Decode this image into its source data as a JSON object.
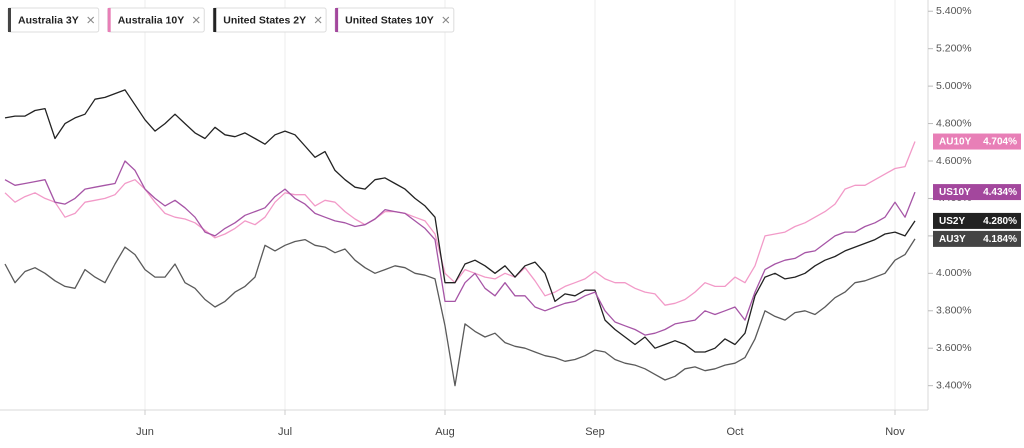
{
  "chart_data": {
    "type": "line",
    "categories": [
      null,
      null,
      null,
      null,
      null,
      null,
      null,
      null,
      null,
      null,
      null,
      null,
      null,
      null,
      "Jun",
      null,
      null,
      null,
      null,
      null,
      null,
      null,
      null,
      null,
      null,
      null,
      null,
      null,
      "Jul",
      null,
      null,
      null,
      null,
      null,
      null,
      null,
      null,
      null,
      null,
      null,
      null,
      null,
      null,
      null,
      "Aug",
      null,
      null,
      null,
      null,
      null,
      null,
      null,
      null,
      null,
      null,
      null,
      null,
      null,
      null,
      "Sep",
      null,
      null,
      null,
      null,
      null,
      null,
      null,
      null,
      null,
      null,
      null,
      null,
      null,
      "Oct",
      null,
      null,
      null,
      null,
      null,
      null,
      null,
      null,
      null,
      null,
      null,
      null,
      null,
      null,
      null,
      "Nov",
      null,
      null
    ],
    "series": [
      {
        "name": "Australia 3Y",
        "short_name": "AU3Y",
        "last_label": "4.184%",
        "color": "#5a5a5a",
        "badge_color": "#444444",
        "values": [
          4.05,
          3.95,
          4.01,
          4.03,
          4.0,
          3.96,
          3.93,
          3.92,
          4.02,
          3.98,
          3.95,
          4.05,
          4.14,
          4.1,
          4.02,
          3.98,
          3.98,
          4.05,
          3.95,
          3.92,
          3.86,
          3.82,
          3.85,
          3.9,
          3.93,
          3.98,
          4.15,
          4.12,
          4.15,
          4.17,
          4.18,
          4.15,
          4.14,
          4.11,
          4.13,
          4.07,
          4.03,
          4.0,
          4.02,
          4.04,
          4.03,
          4.0,
          3.99,
          3.97,
          3.72,
          3.4,
          3.73,
          3.69,
          3.66,
          3.68,
          3.63,
          3.61,
          3.6,
          3.58,
          3.56,
          3.55,
          3.53,
          3.54,
          3.56,
          3.59,
          3.58,
          3.54,
          3.52,
          3.51,
          3.49,
          3.46,
          3.43,
          3.45,
          3.49,
          3.5,
          3.48,
          3.49,
          3.51,
          3.52,
          3.55,
          3.65,
          3.8,
          3.77,
          3.75,
          3.79,
          3.8,
          3.78,
          3.82,
          3.87,
          3.9,
          3.95,
          3.96,
          3.98,
          4.0,
          4.07,
          4.1,
          4.184
        ]
      },
      {
        "name": "Australia 10Y",
        "short_name": "AU10Y",
        "last_label": "4.704%",
        "color": "#f29ac8",
        "badge_color": "#e87fb7",
        "values": [
          4.43,
          4.38,
          4.41,
          4.43,
          4.4,
          4.38,
          4.3,
          4.32,
          4.38,
          4.39,
          4.4,
          4.42,
          4.48,
          4.5,
          4.45,
          4.38,
          4.32,
          4.3,
          4.29,
          4.27,
          4.23,
          4.19,
          4.21,
          4.24,
          4.28,
          4.26,
          4.3,
          4.38,
          4.43,
          4.42,
          4.42,
          4.36,
          4.39,
          4.38,
          4.33,
          4.29,
          4.26,
          4.29,
          4.33,
          4.33,
          4.32,
          4.3,
          4.28,
          4.21,
          4.0,
          3.95,
          4.02,
          4.0,
          3.98,
          3.97,
          4.0,
          3.98,
          4.03,
          3.96,
          3.88,
          3.9,
          3.93,
          3.95,
          3.97,
          4.01,
          3.97,
          3.95,
          3.95,
          3.92,
          3.9,
          3.89,
          3.83,
          3.84,
          3.86,
          3.9,
          3.95,
          3.93,
          3.93,
          3.98,
          3.95,
          4.04,
          4.2,
          4.21,
          4.22,
          4.25,
          4.27,
          4.3,
          4.33,
          4.37,
          4.45,
          4.47,
          4.47,
          4.5,
          4.53,
          4.56,
          4.57,
          4.704
        ]
      },
      {
        "name": "United States 2Y",
        "short_name": "US2Y",
        "last_label": "4.280%",
        "color": "#222222",
        "badge_color": "#222222",
        "values": [
          4.83,
          4.84,
          4.84,
          4.87,
          4.88,
          4.72,
          4.8,
          4.83,
          4.85,
          4.93,
          4.94,
          4.96,
          4.98,
          4.9,
          4.82,
          4.76,
          4.8,
          4.85,
          4.8,
          4.75,
          4.72,
          4.78,
          4.74,
          4.73,
          4.75,
          4.72,
          4.69,
          4.74,
          4.76,
          4.74,
          4.68,
          4.62,
          4.65,
          4.55,
          4.5,
          4.46,
          4.45,
          4.5,
          4.51,
          4.48,
          4.45,
          4.4,
          4.36,
          4.3,
          3.95,
          3.95,
          4.05,
          4.07,
          4.04,
          4.0,
          4.04,
          3.98,
          4.04,
          4.06,
          4.0,
          3.85,
          3.89,
          3.88,
          3.91,
          3.91,
          3.75,
          3.7,
          3.66,
          3.62,
          3.66,
          3.6,
          3.62,
          3.64,
          3.62,
          3.58,
          3.58,
          3.6,
          3.65,
          3.62,
          3.68,
          3.88,
          3.98,
          4.0,
          3.97,
          3.98,
          4.0,
          4.04,
          4.07,
          4.09,
          4.12,
          4.14,
          4.16,
          4.18,
          4.21,
          4.22,
          4.2,
          4.28
        ]
      },
      {
        "name": "United States 10Y",
        "short_name": "US10Y",
        "last_label": "4.434%",
        "color": "#a655a6",
        "badge_color": "#a3479d",
        "values": [
          4.5,
          4.47,
          4.48,
          4.49,
          4.5,
          4.38,
          4.37,
          4.4,
          4.45,
          4.46,
          4.47,
          4.48,
          4.6,
          4.55,
          4.45,
          4.4,
          4.36,
          4.39,
          4.35,
          4.3,
          4.22,
          4.2,
          4.24,
          4.27,
          4.31,
          4.33,
          4.35,
          4.41,
          4.45,
          4.4,
          4.37,
          4.32,
          4.3,
          4.28,
          4.27,
          4.25,
          4.26,
          4.29,
          4.34,
          4.33,
          4.32,
          4.28,
          4.24,
          4.18,
          3.85,
          3.85,
          3.95,
          4.0,
          3.92,
          3.88,
          3.95,
          3.88,
          3.88,
          3.82,
          3.8,
          3.82,
          3.84,
          3.85,
          3.88,
          3.9,
          3.8,
          3.74,
          3.72,
          3.7,
          3.67,
          3.68,
          3.7,
          3.73,
          3.74,
          3.75,
          3.8,
          3.78,
          3.8,
          3.82,
          3.75,
          3.9,
          4.02,
          4.05,
          4.07,
          4.08,
          4.11,
          4.12,
          4.16,
          4.2,
          4.22,
          4.22,
          4.25,
          4.27,
          4.3,
          4.38,
          4.3,
          4.434
        ]
      }
    ],
    "ylim": [
      3.27,
      5.46
    ],
    "yticks": [
      {
        "value": 3.4,
        "label": "3.400%"
      },
      {
        "value": 3.6,
        "label": "3.600%"
      },
      {
        "value": 3.8,
        "label": "3.800%"
      },
      {
        "value": 4.0,
        "label": "4.000%"
      },
      {
        "value": 4.2,
        "label": "4.200%"
      },
      {
        "value": 4.4,
        "label": "4.400%"
      },
      {
        "value": 4.6,
        "label": "4.600%"
      },
      {
        "value": 4.8,
        "label": "4.800%"
      },
      {
        "value": 5.0,
        "label": "5.000%"
      },
      {
        "value": 5.2,
        "label": "5.200%"
      },
      {
        "value": 5.4,
        "label": "5.400%"
      }
    ],
    "axis_side": "right",
    "grid": "x"
  }
}
